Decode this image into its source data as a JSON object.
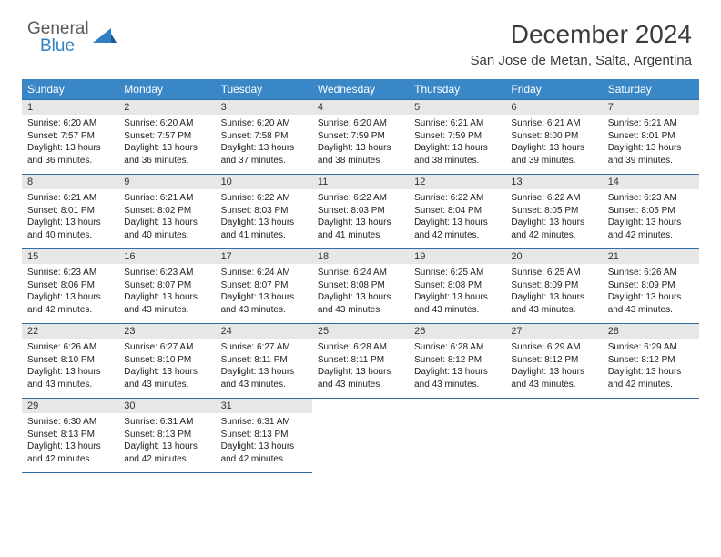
{
  "logo": {
    "word1": "General",
    "word2": "Blue"
  },
  "brand_colors": {
    "gray": "#5a5a5a",
    "blue": "#2f7fc1",
    "header_bg": "#3a87c8",
    "cell_rule": "#2f6ea7",
    "daynum_bg": "#e7e7e7"
  },
  "title": "December 2024",
  "location": "San Jose de Metan, Salta, Argentina",
  "weekdays": [
    "Sunday",
    "Monday",
    "Tuesday",
    "Wednesday",
    "Thursday",
    "Friday",
    "Saturday"
  ],
  "weeks": [
    [
      {
        "n": "1",
        "sr": "6:20 AM",
        "ss": "7:57 PM",
        "dl": "13 hours and 36 minutes."
      },
      {
        "n": "2",
        "sr": "6:20 AM",
        "ss": "7:57 PM",
        "dl": "13 hours and 36 minutes."
      },
      {
        "n": "3",
        "sr": "6:20 AM",
        "ss": "7:58 PM",
        "dl": "13 hours and 37 minutes."
      },
      {
        "n": "4",
        "sr": "6:20 AM",
        "ss": "7:59 PM",
        "dl": "13 hours and 38 minutes."
      },
      {
        "n": "5",
        "sr": "6:21 AM",
        "ss": "7:59 PM",
        "dl": "13 hours and 38 minutes."
      },
      {
        "n": "6",
        "sr": "6:21 AM",
        "ss": "8:00 PM",
        "dl": "13 hours and 39 minutes."
      },
      {
        "n": "7",
        "sr": "6:21 AM",
        "ss": "8:01 PM",
        "dl": "13 hours and 39 minutes."
      }
    ],
    [
      {
        "n": "8",
        "sr": "6:21 AM",
        "ss": "8:01 PM",
        "dl": "13 hours and 40 minutes."
      },
      {
        "n": "9",
        "sr": "6:21 AM",
        "ss": "8:02 PM",
        "dl": "13 hours and 40 minutes."
      },
      {
        "n": "10",
        "sr": "6:22 AM",
        "ss": "8:03 PM",
        "dl": "13 hours and 41 minutes."
      },
      {
        "n": "11",
        "sr": "6:22 AM",
        "ss": "8:03 PM",
        "dl": "13 hours and 41 minutes."
      },
      {
        "n": "12",
        "sr": "6:22 AM",
        "ss": "8:04 PM",
        "dl": "13 hours and 42 minutes."
      },
      {
        "n": "13",
        "sr": "6:22 AM",
        "ss": "8:05 PM",
        "dl": "13 hours and 42 minutes."
      },
      {
        "n": "14",
        "sr": "6:23 AM",
        "ss": "8:05 PM",
        "dl": "13 hours and 42 minutes."
      }
    ],
    [
      {
        "n": "15",
        "sr": "6:23 AM",
        "ss": "8:06 PM",
        "dl": "13 hours and 42 minutes."
      },
      {
        "n": "16",
        "sr": "6:23 AM",
        "ss": "8:07 PM",
        "dl": "13 hours and 43 minutes."
      },
      {
        "n": "17",
        "sr": "6:24 AM",
        "ss": "8:07 PM",
        "dl": "13 hours and 43 minutes."
      },
      {
        "n": "18",
        "sr": "6:24 AM",
        "ss": "8:08 PM",
        "dl": "13 hours and 43 minutes."
      },
      {
        "n": "19",
        "sr": "6:25 AM",
        "ss": "8:08 PM",
        "dl": "13 hours and 43 minutes."
      },
      {
        "n": "20",
        "sr": "6:25 AM",
        "ss": "8:09 PM",
        "dl": "13 hours and 43 minutes."
      },
      {
        "n": "21",
        "sr": "6:26 AM",
        "ss": "8:09 PM",
        "dl": "13 hours and 43 minutes."
      }
    ],
    [
      {
        "n": "22",
        "sr": "6:26 AM",
        "ss": "8:10 PM",
        "dl": "13 hours and 43 minutes."
      },
      {
        "n": "23",
        "sr": "6:27 AM",
        "ss": "8:10 PM",
        "dl": "13 hours and 43 minutes."
      },
      {
        "n": "24",
        "sr": "6:27 AM",
        "ss": "8:11 PM",
        "dl": "13 hours and 43 minutes."
      },
      {
        "n": "25",
        "sr": "6:28 AM",
        "ss": "8:11 PM",
        "dl": "13 hours and 43 minutes."
      },
      {
        "n": "26",
        "sr": "6:28 AM",
        "ss": "8:12 PM",
        "dl": "13 hours and 43 minutes."
      },
      {
        "n": "27",
        "sr": "6:29 AM",
        "ss": "8:12 PM",
        "dl": "13 hours and 43 minutes."
      },
      {
        "n": "28",
        "sr": "6:29 AM",
        "ss": "8:12 PM",
        "dl": "13 hours and 42 minutes."
      }
    ],
    [
      {
        "n": "29",
        "sr": "6:30 AM",
        "ss": "8:13 PM",
        "dl": "13 hours and 42 minutes."
      },
      {
        "n": "30",
        "sr": "6:31 AM",
        "ss": "8:13 PM",
        "dl": "13 hours and 42 minutes."
      },
      {
        "n": "31",
        "sr": "6:31 AM",
        "ss": "8:13 PM",
        "dl": "13 hours and 42 minutes."
      },
      null,
      null,
      null,
      null
    ]
  ],
  "labels": {
    "sunrise": "Sunrise: ",
    "sunset": "Sunset: ",
    "daylight": "Daylight: "
  },
  "typography": {
    "title_fontsize": 28,
    "location_fontsize": 15,
    "weekday_fontsize": 12,
    "daynum_fontsize": 11,
    "body_fontsize": 10
  }
}
